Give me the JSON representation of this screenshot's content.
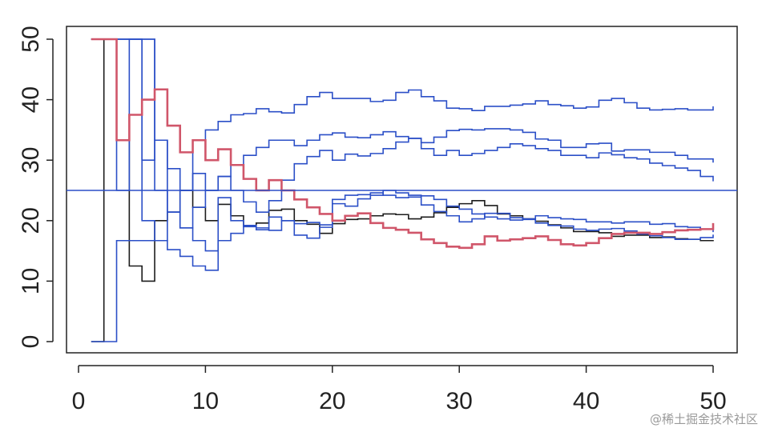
{
  "chart_data": {
    "type": "line",
    "title": "",
    "xlabel": "",
    "ylabel": "",
    "xlim": [
      0,
      50
    ],
    "ylim": [
      0,
      50
    ],
    "x_ticks": [
      0,
      10,
      20,
      30,
      40,
      50
    ],
    "y_ticks": [
      0,
      10,
      20,
      30,
      40,
      50
    ],
    "grid": false,
    "legend": "none",
    "step": true,
    "reference_line": {
      "y": 25,
      "color": "#2b4fc7"
    },
    "colors": {
      "highlight": "#d0566a",
      "black": "#1c1c1c",
      "blue": "#2b4fc7"
    },
    "x": [
      1,
      2,
      3,
      4,
      5,
      6,
      7,
      8,
      9,
      10,
      11,
      12,
      13,
      14,
      15,
      16,
      17,
      18,
      19,
      20,
      21,
      22,
      23,
      24,
      25,
      26,
      27,
      28,
      29,
      30,
      31,
      32,
      33,
      34,
      35,
      36,
      37,
      38,
      39,
      40,
      41,
      42,
      43,
      44,
      45,
      46,
      47,
      48,
      49,
      50
    ],
    "series": [
      {
        "color": "black",
        "values": [
          0,
          50,
          33.3,
          12.5,
          10,
          20,
          21.4,
          25,
          22.2,
          20,
          22.7,
          20.8,
          19.2,
          19.6,
          21.7,
          21.9,
          20,
          19.4,
          17.9,
          19.5,
          20.2,
          20.3,
          20.8,
          21.1,
          21,
          20.3,
          20.6,
          21.3,
          22.2,
          22.8,
          23.3,
          22.5,
          21.1,
          20.8,
          20.3,
          19.9,
          19.3,
          18.8,
          18.2,
          18.2,
          18,
          17.4,
          17.6,
          17.6,
          17.2,
          17.3,
          17,
          16.9,
          16.7,
          16.6
        ]
      },
      {
        "color": "highlight",
        "values": [
          50,
          50,
          33.3,
          37.5,
          40,
          41.7,
          35.7,
          31.3,
          33.3,
          30,
          31.8,
          29.2,
          26.9,
          25,
          26.7,
          25,
          23.5,
          22.2,
          21.1,
          20,
          20.8,
          21.2,
          19.6,
          18.8,
          18.5,
          18,
          16.9,
          16.3,
          15.7,
          15.5,
          16.1,
          17.4,
          16.7,
          16.9,
          17.1,
          17.4,
          16.8,
          16.1,
          15.9,
          16.3,
          17.1,
          17.8,
          18,
          18,
          17.8,
          18.1,
          18.4,
          18.5,
          18.6,
          19.6
        ]
      },
      {
        "color": "blue",
        "values": [
          0,
          0,
          16.7,
          16.7,
          16.7,
          16.7,
          15.2,
          14.1,
          12.5,
          11.8,
          23.8,
          20,
          19,
          18.5,
          20.6,
          20,
          17.6,
          17.1,
          18.9,
          22.8,
          22.4,
          23.6,
          24.2,
          25,
          24.6,
          24.2,
          22.6,
          21.5,
          20.8,
          19.8,
          20.3,
          21.2,
          21.2,
          20.5,
          20.3,
          20.8,
          20.5,
          20.3,
          20.2,
          19.8,
          19.8,
          19.6,
          19.8,
          19.8,
          19.4,
          19.5,
          19,
          18.9,
          18.6,
          18.1
        ]
      },
      {
        "color": "blue",
        "values": [
          50,
          50,
          25,
          50,
          30,
          33.3,
          21.4,
          18.8,
          16.7,
          15,
          16.7,
          17.9,
          19.2,
          18.8,
          18.4,
          20,
          19.5,
          19.7,
          19.3,
          23.5,
          24.2,
          24.3,
          24.6,
          24.2,
          23.8,
          23.9,
          24.1,
          23.5,
          22.4,
          21.9,
          21.1,
          20.6,
          20.3,
          20.1,
          20.2,
          19.6,
          19.2,
          19.1,
          18.6,
          18.4,
          18.6,
          18.7,
          18.3,
          17.8,
          17.5,
          17.2,
          16.9,
          16.9,
          17.2,
          17.7
        ]
      },
      {
        "color": "blue",
        "values": [
          50,
          50,
          50,
          50,
          50,
          33.3,
          28.6,
          25,
          27.8,
          25,
          27.3,
          25,
          23.1,
          21.4,
          23.3,
          26.7,
          29.4,
          30.6,
          31.6,
          30,
          31,
          30.7,
          31.1,
          31.9,
          33,
          33.6,
          31.9,
          30.8,
          31.6,
          30.8,
          31.1,
          31.6,
          32.1,
          32.7,
          32.4,
          31.9,
          31.6,
          30.8,
          30.8,
          30.4,
          31.2,
          30.9,
          30.4,
          30.2,
          29.5,
          29.1,
          28.7,
          28.3,
          27.3,
          26.5
        ]
      },
      {
        "color": "blue",
        "values": [
          50,
          50,
          50,
          50,
          20,
          16.7,
          21.4,
          18.8,
          22.2,
          25,
          27.3,
          29.2,
          30.8,
          32.1,
          33.3,
          33.3,
          32.4,
          33.3,
          34.2,
          34.5,
          33.8,
          33.7,
          34.2,
          34.7,
          33.9,
          33.6,
          32.9,
          33.8,
          34.9,
          35.1,
          35,
          35.2,
          35.2,
          35,
          34.6,
          33.5,
          33.3,
          32.1,
          32.1,
          32.7,
          32.8,
          31.5,
          31.7,
          31.7,
          31.3,
          31.3,
          30.8,
          30.2,
          30.2,
          29.6
        ]
      },
      {
        "color": "blue",
        "values": [
          50,
          50,
          50,
          50,
          50,
          25,
          21.4,
          25,
          33.3,
          35,
          36.4,
          37.5,
          37.7,
          38.5,
          38,
          37.8,
          39.2,
          40.5,
          41.2,
          40.2,
          40.2,
          40.2,
          39.7,
          39.9,
          41.2,
          41.6,
          40.5,
          39.8,
          38.6,
          38.5,
          38.2,
          38.9,
          38.9,
          39.1,
          39.3,
          39.8,
          39.2,
          39,
          38.6,
          38.8,
          39.9,
          40.2,
          39.5,
          38.6,
          38.3,
          38.4,
          38.5,
          38.3,
          38.3,
          38.9
        ]
      }
    ]
  },
  "watermark": "@稀土掘金技术社区"
}
